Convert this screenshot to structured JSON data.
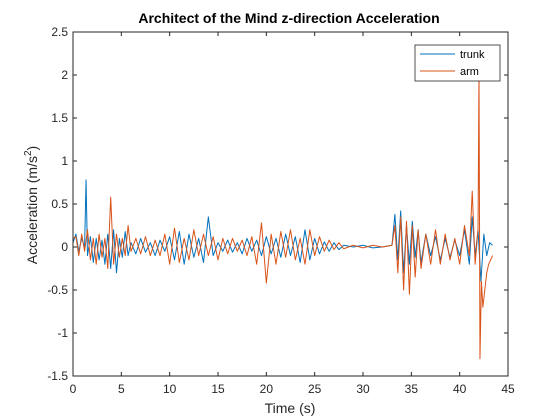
{
  "chart_data": {
    "type": "line",
    "title": "Architect of the Mind z-direction Acceleration",
    "xlabel": "Time (s)",
    "ylabel": "Acceleration (m/s",
    "ylabel_sup": "2",
    "ylabel_close": ")",
    "xlim": [
      0,
      45
    ],
    "ylim": [
      -1.5,
      2.5
    ],
    "xticks": [
      0,
      5,
      10,
      15,
      20,
      25,
      30,
      35,
      40,
      45
    ],
    "yticks": [
      -1.5,
      -1,
      -0.5,
      0,
      0.5,
      1,
      1.5,
      2,
      2.5
    ],
    "xtick_labels": [
      "0",
      "5",
      "10",
      "15",
      "20",
      "25",
      "30",
      "35",
      "40",
      "45"
    ],
    "ytick_labels": [
      "-1.5",
      "-1",
      "-0.5",
      "0",
      "0.5",
      "1",
      "1.5",
      "2",
      "2.5"
    ],
    "grid": false,
    "legend_position": "top-right",
    "series": [
      {
        "name": "trunk",
        "color": "#0072BD",
        "x": [
          0,
          0.3,
          0.6,
          0.9,
          1.2,
          1.35,
          1.5,
          1.8,
          2.1,
          2.4,
          2.7,
          3.0,
          3.3,
          3.6,
          3.9,
          4.2,
          4.5,
          4.8,
          5.1,
          5.4,
          5.7,
          6.0,
          6.5,
          7.0,
          7.5,
          8.0,
          8.5,
          9.0,
          9.5,
          10.0,
          10.5,
          11.0,
          11.5,
          12.0,
          12.5,
          13.0,
          13.5,
          14.0,
          14.5,
          15.0,
          15.5,
          16.0,
          16.5,
          17.0,
          17.5,
          18.0,
          18.5,
          19.0,
          19.5,
          20.0,
          20.5,
          21.0,
          21.5,
          22.0,
          22.5,
          23.0,
          23.5,
          24.0,
          24.5,
          25.0,
          25.5,
          26.0,
          26.5,
          27.0,
          27.5,
          28.0,
          29.0,
          30.0,
          31.0,
          32.0,
          33.0,
          33.3,
          33.6,
          33.9,
          34.2,
          34.5,
          34.8,
          35.1,
          35.4,
          35.7,
          36.0,
          36.5,
          37.0,
          37.5,
          38.0,
          38.5,
          39.0,
          39.5,
          40.0,
          40.5,
          41.0,
          41.3,
          41.6,
          41.9,
          42.2,
          42.5,
          42.8,
          43.1,
          43.4
        ],
        "y": [
          0.05,
          0.15,
          -0.05,
          0.1,
          0.0,
          0.78,
          -0.1,
          0.12,
          -0.18,
          0.1,
          -0.15,
          0.08,
          -0.2,
          0.15,
          -0.25,
          0.2,
          -0.3,
          0.1,
          -0.12,
          0.18,
          -0.1,
          0.05,
          -0.08,
          0.1,
          -0.06,
          0.05,
          -0.1,
          0.08,
          -0.05,
          0.12,
          -0.15,
          0.18,
          -0.2,
          0.15,
          -0.12,
          0.1,
          -0.18,
          0.35,
          -0.1,
          0.05,
          -0.05,
          0.08,
          -0.06,
          0.05,
          -0.08,
          0.1,
          -0.05,
          0.08,
          -0.1,
          0.12,
          -0.08,
          0.1,
          -0.12,
          0.15,
          -0.1,
          0.12,
          -0.18,
          0.2,
          -0.15,
          0.1,
          -0.08,
          0.06,
          -0.05,
          0.05,
          -0.03,
          0.02,
          0.0,
          0.02,
          -0.01,
          0.0,
          0.02,
          0.38,
          -0.15,
          0.42,
          -0.3,
          0.25,
          -0.2,
          0.3,
          -0.12,
          0.2,
          -0.18,
          0.15,
          -0.1,
          0.12,
          -0.15,
          0.1,
          -0.12,
          0.08,
          -0.1,
          0.2,
          -0.2,
          0.35,
          -0.1,
          0.2,
          -0.4,
          0.15,
          -0.1,
          0.05,
          0.02
        ]
      },
      {
        "name": "arm",
        "color": "#D95319",
        "x": [
          0,
          0.3,
          0.6,
          0.9,
          1.2,
          1.5,
          1.8,
          2.1,
          2.4,
          2.7,
          3.0,
          3.3,
          3.6,
          3.9,
          4.2,
          4.5,
          4.8,
          5.1,
          5.4,
          5.7,
          6.0,
          6.5,
          7.0,
          7.5,
          8.0,
          8.5,
          9.0,
          9.5,
          10.0,
          10.5,
          11.0,
          11.5,
          12.0,
          12.5,
          13.0,
          13.5,
          14.0,
          14.5,
          15.0,
          15.5,
          16.0,
          16.5,
          17.0,
          17.5,
          18.0,
          18.5,
          19.0,
          19.5,
          20.0,
          20.5,
          21.0,
          21.5,
          22.0,
          22.5,
          23.0,
          23.5,
          24.0,
          24.5,
          25.0,
          25.5,
          26.0,
          26.5,
          27.0,
          27.5,
          28.0,
          29.0,
          30.0,
          31.0,
          32.0,
          33.0,
          33.3,
          33.6,
          33.9,
          34.2,
          34.5,
          34.8,
          35.1,
          35.4,
          35.7,
          36.0,
          36.5,
          37.0,
          37.5,
          38.0,
          38.5,
          39.0,
          39.5,
          40.0,
          40.5,
          41.0,
          41.3,
          41.6,
          41.9,
          42.0,
          42.1,
          42.25,
          42.4,
          42.6,
          42.8,
          43.0,
          43.2,
          43.4
        ],
        "y": [
          0.1,
          0.12,
          -0.1,
          0.15,
          -0.05,
          0.2,
          -0.15,
          0.1,
          -0.2,
          0.15,
          -0.12,
          0.1,
          -0.25,
          0.58,
          -0.2,
          0.15,
          -0.12,
          0.1,
          -0.1,
          0.25,
          -0.05,
          0.1,
          -0.08,
          0.12,
          -0.1,
          0.08,
          -0.1,
          0.15,
          -0.2,
          0.22,
          -0.18,
          0.1,
          -0.15,
          0.2,
          -0.1,
          0.15,
          -0.1,
          0.12,
          -0.15,
          0.1,
          -0.08,
          0.1,
          -0.05,
          0.08,
          -0.1,
          0.12,
          -0.2,
          0.28,
          -0.42,
          0.15,
          -0.2,
          0.18,
          -0.12,
          0.2,
          -0.15,
          0.1,
          -0.2,
          0.2,
          -0.1,
          0.12,
          -0.05,
          0.08,
          -0.03,
          0.05,
          -0.02,
          0.02,
          -0.01,
          0.02,
          0.0,
          0.02,
          0.25,
          -0.3,
          0.35,
          -0.5,
          0.3,
          -0.55,
          0.25,
          -0.35,
          0.2,
          -0.25,
          0.15,
          -0.2,
          0.2,
          -0.2,
          0.15,
          -0.15,
          0.1,
          -0.2,
          0.25,
          -0.1,
          0.65,
          -0.2,
          0.2,
          2.05,
          -1.3,
          -0.4,
          -0.7,
          -0.5,
          -0.3,
          -0.2,
          -0.15,
          -0.1
        ]
      }
    ]
  }
}
